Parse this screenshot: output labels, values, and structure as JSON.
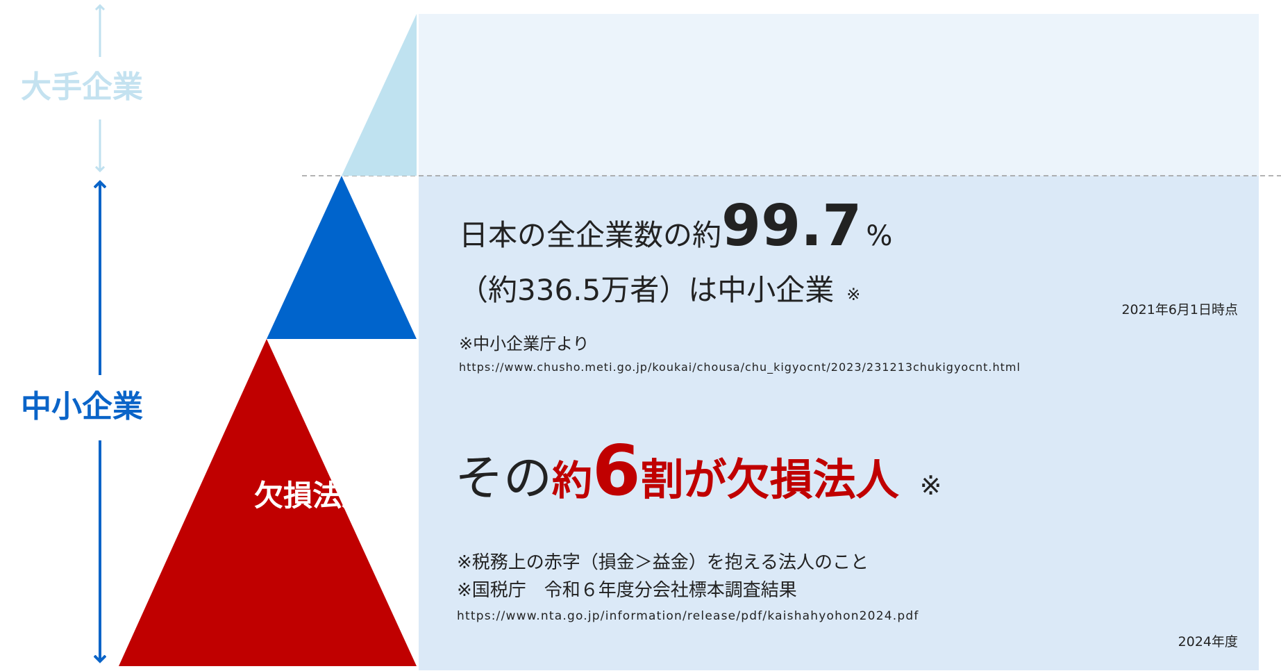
{
  "side": {
    "large_label": "大手企業",
    "sme_label": "中小企業"
  },
  "pyramid": {
    "deficit_label": "欠損法人"
  },
  "upper": {
    "line1_prefix": "日本の全企業数の約",
    "line1_number": "99.7",
    "line1_unit": "%",
    "line2": "（約336.5万者）は中小企業",
    "line2_mark": "※",
    "date": "2021年6月1日時点",
    "source": "※中小企業庁より",
    "url": "https://www.chusho.meti.go.jp/koukai/chousa/chu_kigyocnt/2023/231213chukigyocnt.html"
  },
  "lower": {
    "prefix": "その",
    "approx": "約",
    "number": "6",
    "suffix": "割が欠損法人",
    "mark": "※",
    "note1": "※税務上の赤字（損金＞益金）を抱える法人のこと",
    "note2": "※国税庁　令和６年度分会社標本調査結果",
    "url": "https://www.nta.go.jp/information/release/pdf/kaishahyohon2024.pdf",
    "year": "2024年度"
  }
}
